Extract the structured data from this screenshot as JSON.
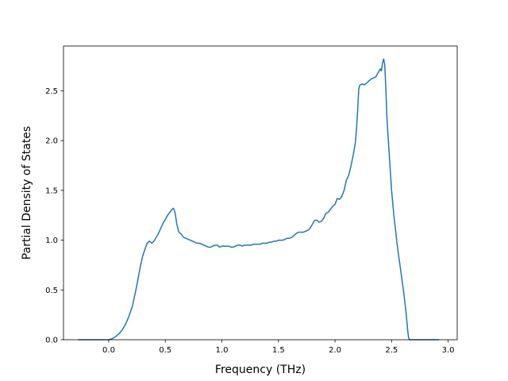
{
  "chart_data": {
    "type": "line",
    "title": "",
    "xlabel": "Frequency (THz)",
    "ylabel": "Partial Density of States",
    "xlim": [
      -0.4,
      3.08
    ],
    "ylim": [
      0.0,
      2.95
    ],
    "grid": false,
    "legend": "none",
    "x_ticks": [
      0.0,
      0.5,
      1.0,
      1.5,
      2.0,
      2.5,
      3.0
    ],
    "x_tick_labels": [
      "0.0",
      "0.5",
      "1.0",
      "1.5",
      "2.0",
      "2.5",
      "3.0"
    ],
    "y_ticks": [
      0.0,
      0.5,
      1.0,
      1.5,
      2.0,
      2.5
    ],
    "y_tick_labels": [
      "0.0",
      "0.5",
      "1.0",
      "1.5",
      "2.0",
      "2.5"
    ],
    "series": [
      {
        "color": "#1f77b4",
        "x": [
          -0.27,
          0.0,
          0.03,
          0.06,
          0.09,
          0.12,
          0.15,
          0.18,
          0.21,
          0.24,
          0.26,
          0.28,
          0.3,
          0.32,
          0.34,
          0.36,
          0.37,
          0.38,
          0.39,
          0.4,
          0.42,
          0.44,
          0.46,
          0.48,
          0.5,
          0.52,
          0.54,
          0.56,
          0.57,
          0.58,
          0.59,
          0.6,
          0.62,
          0.64,
          0.66,
          0.68,
          0.7,
          0.72,
          0.74,
          0.76,
          0.78,
          0.8,
          0.82,
          0.84,
          0.86,
          0.88,
          0.9,
          0.92,
          0.94,
          0.96,
          0.98,
          1.0,
          1.02,
          1.04,
          1.06,
          1.08,
          1.1,
          1.12,
          1.14,
          1.16,
          1.18,
          1.2,
          1.22,
          1.24,
          1.26,
          1.28,
          1.3,
          1.32,
          1.34,
          1.36,
          1.38,
          1.4,
          1.42,
          1.44,
          1.46,
          1.48,
          1.5,
          1.52,
          1.54,
          1.56,
          1.58,
          1.6,
          1.62,
          1.64,
          1.66,
          1.68,
          1.7,
          1.72,
          1.74,
          1.76,
          1.78,
          1.8,
          1.82,
          1.84,
          1.86,
          1.88,
          1.9,
          1.92,
          1.94,
          1.96,
          1.98,
          2.0,
          2.02,
          2.04,
          2.06,
          2.08,
          2.1,
          2.12,
          2.14,
          2.16,
          2.18,
          2.19,
          2.2,
          2.21,
          2.22,
          2.24,
          2.26,
          2.28,
          2.3,
          2.32,
          2.34,
          2.36,
          2.38,
          2.4,
          2.41,
          2.42,
          2.43,
          2.44,
          2.45,
          2.46,
          2.48,
          2.5,
          2.52,
          2.55,
          2.58,
          2.61,
          2.63,
          2.64,
          2.65,
          2.66,
          2.68,
          2.92
        ],
        "y": [
          0.0,
          0.0,
          0.01,
          0.03,
          0.06,
          0.1,
          0.16,
          0.24,
          0.34,
          0.5,
          0.62,
          0.74,
          0.84,
          0.91,
          0.97,
          0.99,
          0.98,
          0.97,
          0.98,
          0.99,
          1.03,
          1.07,
          1.12,
          1.17,
          1.21,
          1.25,
          1.28,
          1.31,
          1.32,
          1.3,
          1.25,
          1.17,
          1.08,
          1.06,
          1.03,
          1.02,
          1.01,
          1.0,
          0.99,
          0.98,
          0.97,
          0.97,
          0.96,
          0.95,
          0.94,
          0.93,
          0.93,
          0.94,
          0.95,
          0.95,
          0.93,
          0.94,
          0.94,
          0.94,
          0.94,
          0.93,
          0.93,
          0.94,
          0.95,
          0.95,
          0.94,
          0.95,
          0.95,
          0.95,
          0.95,
          0.96,
          0.96,
          0.96,
          0.96,
          0.97,
          0.97,
          0.97,
          0.98,
          0.98,
          0.99,
          0.99,
          1.0,
          1.0,
          1.0,
          1.01,
          1.02,
          1.02,
          1.03,
          1.05,
          1.07,
          1.08,
          1.08,
          1.08,
          1.09,
          1.1,
          1.12,
          1.16,
          1.2,
          1.2,
          1.18,
          1.19,
          1.22,
          1.27,
          1.28,
          1.31,
          1.34,
          1.36,
          1.42,
          1.41,
          1.44,
          1.5,
          1.6,
          1.65,
          1.74,
          1.85,
          1.98,
          2.12,
          2.3,
          2.52,
          2.56,
          2.57,
          2.56,
          2.58,
          2.6,
          2.62,
          2.63,
          2.64,
          2.68,
          2.72,
          2.7,
          2.78,
          2.82,
          2.76,
          2.5,
          2.2,
          1.85,
          1.5,
          1.25,
          0.95,
          0.7,
          0.45,
          0.25,
          0.12,
          0.02,
          0.0,
          0.0,
          0.0
        ]
      }
    ]
  }
}
